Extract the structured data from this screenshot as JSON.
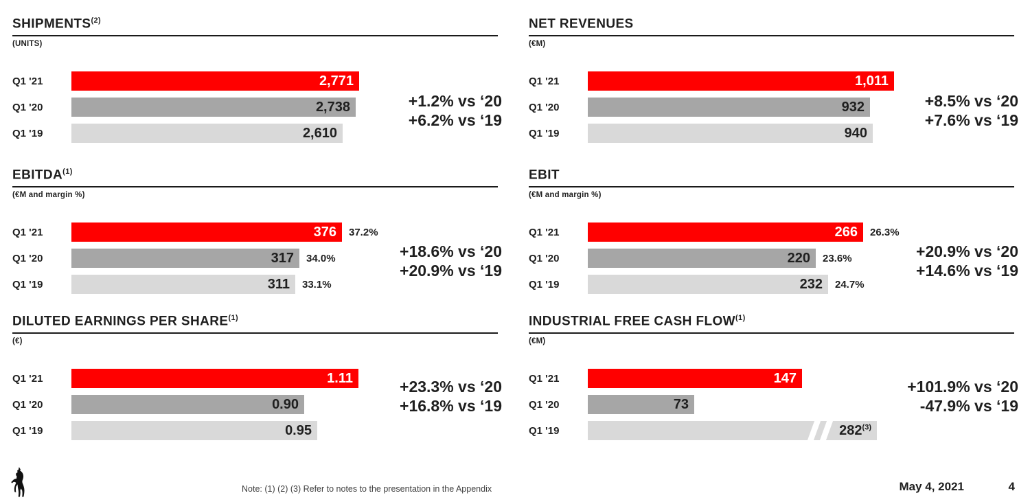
{
  "slide": {
    "colors": {
      "accent_red": "#FF0000",
      "gray": "#A6A6A6",
      "light_gray": "#D9D9D9",
      "text": "#1F1F1F"
    },
    "footer": {
      "note": "Note: (1) (2) (3) Refer to notes to the presentation in the Appendix",
      "date": "May 4, 2021",
      "page": "4",
      "logo": "ferrari-prancing-horse"
    }
  },
  "chart_data": [
    {
      "id": "shipments",
      "type": "bar",
      "title": "SHIPMENTS",
      "title_sup": "(2)",
      "subtitle": "(UNITS)",
      "categories": [
        "Q1 '21",
        "Q1 '20",
        "Q1 '19"
      ],
      "bars": [
        {
          "label": "Q1 '21",
          "value": 2771,
          "display": "2,771",
          "color": "red"
        },
        {
          "label": "Q1 '20",
          "value": 2738,
          "display": "2,738",
          "color": "gray"
        },
        {
          "label": "Q1 '19",
          "value": 2610,
          "display": "2,610",
          "color": "lightgray"
        }
      ],
      "deltas": [
        "+1.2% vs ‘20",
        "+6.2% vs ‘19"
      ]
    },
    {
      "id": "net_revenues",
      "type": "bar",
      "title": "NET REVENUES",
      "title_sup": "",
      "subtitle": "(€M)",
      "categories": [
        "Q1 '21",
        "Q1 '20",
        "Q1 '19"
      ],
      "bars": [
        {
          "label": "Q1 '21",
          "value": 1011,
          "display": "1,011",
          "color": "red"
        },
        {
          "label": "Q1 '20",
          "value": 932,
          "display": "932",
          "color": "gray"
        },
        {
          "label": "Q1 '19",
          "value": 940,
          "display": "940",
          "color": "lightgray"
        }
      ],
      "deltas": [
        "+8.5% vs ‘20",
        "+7.6% vs ‘19"
      ]
    },
    {
      "id": "ebitda",
      "type": "bar",
      "title": "EBITDA",
      "title_sup": "(1)",
      "subtitle": "(€M and margin %)",
      "categories": [
        "Q1 '21",
        "Q1 '20",
        "Q1 '19"
      ],
      "bars": [
        {
          "label": "Q1 '21",
          "value": 376,
          "display": "376",
          "margin": "37.2%",
          "color": "red"
        },
        {
          "label": "Q1 '20",
          "value": 317,
          "display": "317",
          "margin": "34.0%",
          "color": "gray"
        },
        {
          "label": "Q1 '19",
          "value": 311,
          "display": "311",
          "margin": "33.1%",
          "color": "lightgray"
        }
      ],
      "deltas": [
        "+18.6% vs ‘20",
        "+20.9% vs ‘19"
      ]
    },
    {
      "id": "ebit",
      "type": "bar",
      "title": "EBIT",
      "title_sup": "",
      "subtitle": "(€M and margin %)",
      "categories": [
        "Q1 '21",
        "Q1 '20",
        "Q1 '19"
      ],
      "bars": [
        {
          "label": "Q1 '21",
          "value": 266,
          "display": "266",
          "margin": "26.3%",
          "color": "red"
        },
        {
          "label": "Q1 '20",
          "value": 220,
          "display": "220",
          "margin": "23.6%",
          "color": "gray"
        },
        {
          "label": "Q1 '19",
          "value": 232,
          "display": "232",
          "margin": "24.7%",
          "color": "lightgray"
        }
      ],
      "deltas": [
        "+20.9% vs ‘20",
        "+14.6% vs ‘19"
      ]
    },
    {
      "id": "diluted_eps",
      "type": "bar",
      "title": "DILUTED EARNINGS PER SHARE",
      "title_sup": "(1)",
      "subtitle": "(€)",
      "categories": [
        "Q1 '21",
        "Q1 '20",
        "Q1 '19"
      ],
      "bars": [
        {
          "label": "Q1 '21",
          "value": 1.11,
          "display": "1.11",
          "color": "red"
        },
        {
          "label": "Q1 '20",
          "value": 0.9,
          "display": "0.90",
          "color": "gray"
        },
        {
          "label": "Q1 '19",
          "value": 0.95,
          "display": "0.95",
          "color": "lightgray"
        }
      ],
      "deltas": [
        "+23.3% vs ‘20",
        "+16.8% vs ‘19"
      ]
    },
    {
      "id": "industrial_free_cash_flow",
      "type": "bar",
      "title": "INDUSTRIAL FREE CASH FLOW",
      "title_sup": "(1)",
      "subtitle": "(€M)",
      "categories": [
        "Q1 '21",
        "Q1 '20",
        "Q1 '19"
      ],
      "bars": [
        {
          "label": "Q1 '21",
          "value": 147,
          "display": "147",
          "color": "red"
        },
        {
          "label": "Q1 '20",
          "value": 73,
          "display": "73",
          "color": "gray"
        },
        {
          "label": "Q1 '19",
          "value": 282,
          "display": "282",
          "sup": "(3)",
          "color": "lightgray",
          "axis_break": true
        }
      ],
      "deltas": [
        "+101.9% vs ‘20",
        "-47.9% vs ‘19"
      ]
    }
  ]
}
